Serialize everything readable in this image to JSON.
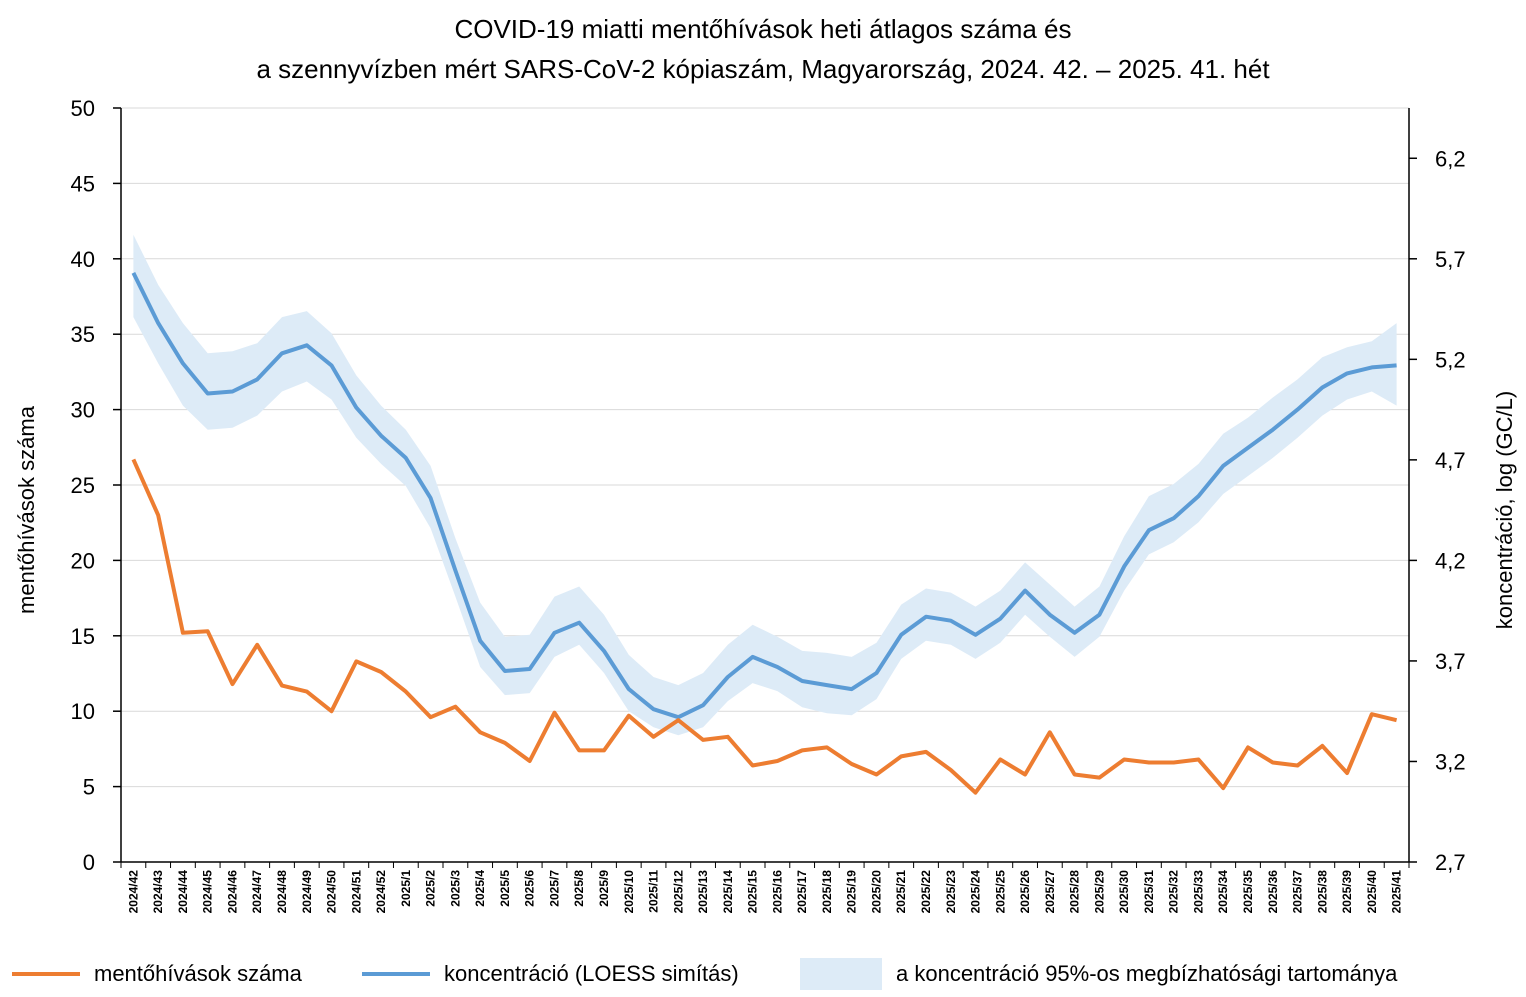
{
  "chart_data": {
    "type": "line",
    "title": "COVID-19 miatti mentőhívások heti átlagos száma és",
    "subtitle": "a szennyvízben mért SARS-CoV-2 kópiaszám, Magyarország, 2024. 42. – 2025. 41. hét",
    "ylabel": "mentőhívások száma",
    "y2label": "koncentráció, log (GC/L)",
    "ylim": [
      0,
      50
    ],
    "y2lim": [
      2.7,
      6.45
    ],
    "yticks": [
      0,
      5,
      10,
      15,
      20,
      25,
      30,
      35,
      40,
      45,
      50
    ],
    "y2ticks": [
      "2,7",
      "3,2",
      "3,7",
      "4,2",
      "4,7",
      "5,2",
      "5,7",
      "6,2"
    ],
    "y2tick_values": [
      2.7,
      3.2,
      3.7,
      4.2,
      4.7,
      5.2,
      5.7,
      6.2
    ],
    "grid": "horizontal",
    "categories": [
      "2024/42",
      "2024/43",
      "2024/44",
      "2024/45",
      "2024/46",
      "2024/47",
      "2024/48",
      "2024/49",
      "2024/50",
      "2024/51",
      "2024/52",
      "2025/1",
      "2025/2",
      "2025/3",
      "2025/4",
      "2025/5",
      "2025/6",
      "2025/7",
      "2025/8",
      "2025/9",
      "2025/10",
      "2025/11",
      "2025/12",
      "2025/13",
      "2025/14",
      "2025/15",
      "2025/16",
      "2025/17",
      "2025/18",
      "2025/19",
      "2025/20",
      "2025/21",
      "2025/22",
      "2025/23",
      "2025/24",
      "2025/25",
      "2025/26",
      "2025/27",
      "2025/28",
      "2025/29",
      "2025/30",
      "2025/31",
      "2025/32",
      "2025/33",
      "2025/34",
      "2025/35",
      "2025/36",
      "2025/37",
      "2025/38",
      "2025/39",
      "2025/40",
      "2025/41"
    ],
    "series": [
      {
        "name": "mentőhívások száma",
        "axis": "left",
        "color": "#ED7D31",
        "values": [
          26.7,
          23.0,
          15.2,
          15.3,
          11.8,
          14.4,
          11.7,
          11.3,
          10.0,
          13.3,
          12.6,
          11.3,
          9.6,
          10.3,
          8.6,
          7.9,
          6.7,
          9.9,
          7.4,
          7.4,
          9.7,
          8.3,
          9.4,
          8.1,
          8.3,
          6.4,
          6.7,
          7.4,
          7.6,
          6.5,
          5.8,
          7.0,
          7.3,
          6.1,
          4.6,
          6.8,
          5.8,
          8.6,
          5.8,
          5.6,
          6.8,
          6.6,
          6.6,
          6.8,
          4.9,
          7.6,
          6.6,
          6.4,
          7.7,
          5.9,
          9.8,
          9.4
        ]
      },
      {
        "name": "koncentráció (LOESS simítás)",
        "axis": "right",
        "color": "#5B9BD5",
        "values": [
          5.63,
          5.38,
          5.18,
          5.03,
          5.04,
          5.1,
          5.23,
          5.27,
          5.17,
          4.96,
          4.82,
          4.71,
          4.51,
          4.15,
          3.8,
          3.65,
          3.66,
          3.84,
          3.89,
          3.75,
          3.56,
          3.46,
          3.42,
          3.48,
          3.62,
          3.72,
          3.67,
          3.6,
          3.58,
          3.56,
          3.64,
          3.83,
          3.92,
          3.9,
          3.83,
          3.91,
          4.05,
          3.93,
          3.84,
          3.93,
          4.17,
          4.35,
          4.41,
          4.52,
          4.67,
          4.76,
          4.85,
          4.95,
          5.06,
          5.13,
          5.16,
          5.17
        ]
      }
    ],
    "band": {
      "name": "a koncentráció 95%-os megbízhatósági tartománya",
      "color": "#DDEBF7",
      "lower": [
        5.41,
        5.18,
        4.97,
        4.85,
        4.86,
        4.92,
        5.04,
        5.09,
        5.0,
        4.81,
        4.68,
        4.57,
        4.36,
        4.02,
        3.67,
        3.53,
        3.54,
        3.72,
        3.78,
        3.64,
        3.45,
        3.37,
        3.33,
        3.37,
        3.5,
        3.59,
        3.55,
        3.47,
        3.44,
        3.43,
        3.51,
        3.71,
        3.8,
        3.78,
        3.71,
        3.79,
        3.93,
        3.82,
        3.72,
        3.82,
        4.05,
        4.23,
        4.29,
        4.39,
        4.53,
        4.62,
        4.71,
        4.81,
        4.92,
        5.0,
        5.04,
        4.97
      ]
    },
    "band_upper": [
      5.82,
      5.57,
      5.38,
      5.23,
      5.24,
      5.28,
      5.41,
      5.44,
      5.33,
      5.12,
      4.97,
      4.85,
      4.67,
      4.31,
      3.99,
      3.82,
      3.83,
      4.02,
      4.07,
      3.93,
      3.73,
      3.62,
      3.58,
      3.64,
      3.78,
      3.88,
      3.82,
      3.75,
      3.74,
      3.72,
      3.79,
      3.98,
      4.06,
      4.04,
      3.97,
      4.05,
      4.19,
      4.08,
      3.97,
      4.07,
      4.32,
      4.52,
      4.58,
      4.68,
      4.83,
      4.91,
      5.01,
      5.1,
      5.21,
      5.26,
      5.29,
      5.38
    ]
  },
  "legend": {
    "calls": "mentőhívások száma",
    "loess": "koncentráció (LOESS simítás)",
    "band": "a koncentráció 95%-os megbízhatósági tartománya"
  }
}
